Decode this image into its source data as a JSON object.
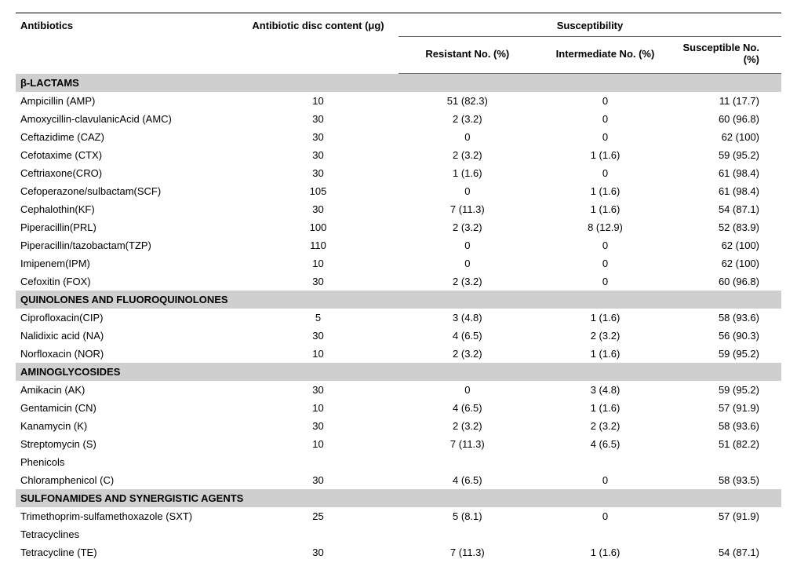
{
  "headers": {
    "col1": "Antibiotics",
    "col2": "Antibiotic disc content (μg)",
    "susceptibility": "Susceptibility",
    "resistant": "Resistant No. (%)",
    "intermediate": "Intermediate No. (%)",
    "susceptible": "Susceptible No. (%)"
  },
  "sections": [
    {
      "title": "β-LACTAMS",
      "rows": [
        {
          "name": "Ampicillin (AMP)",
          "disc": "10",
          "r": "51 (82.3)",
          "i": "0",
          "s": "11 (17.7)"
        },
        {
          "name": "Amoxycillin-clavulanicAcid (AMC)",
          "disc": "30",
          "r": "2 (3.2)",
          "i": "0",
          "s": "60 (96.8)"
        },
        {
          "name": "Ceftazidime (CAZ)",
          "disc": "30",
          "r": "0",
          "i": "0",
          "s": "62 (100)"
        },
        {
          "name": "Cefotaxime (CTX)",
          "disc": "30",
          "r": "2 (3.2)",
          "i": "1 (1.6)",
          "s": "59 (95.2)"
        },
        {
          "name": "Ceftriaxone(CRO)",
          "disc": "30",
          "r": "1 (1.6)",
          "i": "0",
          "s": "61 (98.4)"
        },
        {
          "name": "Cefoperazone/sulbactam(SCF)",
          "disc": "105",
          "r": "0",
          "i": "1 (1.6)",
          "s": "61 (98.4)"
        },
        {
          "name": "Cephalothin(KF)",
          "disc": "30",
          "r": "7 (11.3)",
          "i": "1 (1.6)",
          "s": "54 (87.1)"
        },
        {
          "name": "Piperacillin(PRL)",
          "disc": "100",
          "r": "2 (3.2)",
          "i": "8 (12.9)",
          "s": "52 (83.9)"
        },
        {
          "name": "Piperacillin/tazobactam(TZP)",
          "disc": "110",
          "r": "0",
          "i": "0",
          "s": "62 (100)"
        },
        {
          "name": "Imipenem(IPM)",
          "disc": "10",
          "r": "0",
          "i": "0",
          "s": "62 (100)"
        },
        {
          "name": "Cefoxitin (FOX)",
          "disc": "30",
          "r": "2 (3.2)",
          "i": "0",
          "s": "60 (96.8)"
        }
      ]
    },
    {
      "title": "QUINOLONES AND FLUOROQUINOLONES",
      "rows": [
        {
          "name": "Ciprofloxacin(CIP)",
          "disc": "5",
          "r": "3 (4.8)",
          "i": "1 (1.6)",
          "s": "58 (93.6)"
        },
        {
          "name": "Nalidixic acid (NA)",
          "disc": "30",
          "r": "4 (6.5)",
          "i": "2 (3.2)",
          "s": "56 (90.3)"
        },
        {
          "name": "Norfloxacin (NOR)",
          "disc": "10",
          "r": "2 (3.2)",
          "i": "1 (1.6)",
          "s": "59 (95.2)"
        }
      ]
    },
    {
      "title": "AMINOGLYCOSIDES",
      "rows": [
        {
          "name": "Amikacin (AK)",
          "disc": "30",
          "r": "0",
          "i": "3 (4.8)",
          "s": "59 (95.2)"
        },
        {
          "name": "Gentamicin (CN)",
          "disc": "10",
          "r": "4 (6.5)",
          "i": "1 (1.6)",
          "s": "57 (91.9)"
        },
        {
          "name": "Kanamycin (K)",
          "disc": "30",
          "r": "2 (3.2)",
          "i": "2 (3.2)",
          "s": "58 (93.6)"
        },
        {
          "name": "Streptomycin (S)",
          "disc": "10",
          "r": "7 (11.3)",
          "i": "4 (6.5)",
          "s": "51 (82.2)"
        },
        {
          "name": "Phenicols",
          "disc": "",
          "r": "",
          "i": "",
          "s": ""
        },
        {
          "name": "Chloramphenicol (C)",
          "disc": "30",
          "r": "4 (6.5)",
          "i": "0",
          "s": "58 (93.5)"
        }
      ]
    },
    {
      "title": " SULFONAMIDES AND SYNERGISTIC AGENTS",
      "rows": [
        {
          "name": "Trimethoprim-sulfamethoxazole (SXT)",
          "disc": "25",
          "r": "5 (8.1)",
          "i": "0",
          "s": "57 (91.9)"
        },
        {
          "name": "Tetracyclines",
          "disc": "",
          "r": "",
          "i": "",
          "s": ""
        },
        {
          "name": "Tetracycline (TE)",
          "disc": "30",
          "r": "7 (11.3)",
          "i": "1 (1.6)",
          "s": "54 (87.1)"
        }
      ]
    }
  ],
  "styles": {
    "category_bg": "#cfcfcf",
    "border_color": "#666666",
    "top_border_color": "#000000",
    "font_size_pt": 10
  }
}
